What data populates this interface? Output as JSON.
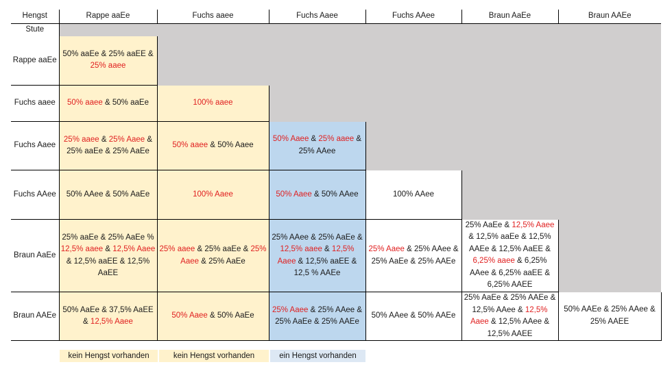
{
  "corner_label": "Hengst",
  "stute_label": "Stute",
  "columns": [
    "Rappe aaEe",
    "Fuchs aaee",
    "Fuchs Aaee",
    "Fuchs AAee",
    "Braun AaEe",
    "Braun AAEe"
  ],
  "rows": [
    {
      "label": "Rappe aaEe",
      "cells": [
        {
          "c": "y",
          "parts": [
            {
              "t": "50% aaEe & 25% aaEE & "
            },
            {
              "t": "25% aaee",
              "r": true
            }
          ]
        }
      ]
    },
    {
      "label": "Fuchs aaee",
      "cells": [
        {
          "c": "y",
          "parts": [
            {
              "t": "50% aaee",
              "r": true
            },
            {
              "t": " & 50% aaEe"
            }
          ]
        },
        {
          "c": "y",
          "parts": [
            {
              "t": "100% aaee",
              "r": true
            }
          ]
        }
      ]
    },
    {
      "label": "Fuchs Aaee",
      "cells": [
        {
          "c": "y",
          "parts": [
            {
              "t": "25% aaee",
              "r": true
            },
            {
              "t": " & "
            },
            {
              "t": "25% Aaee",
              "r": true
            },
            {
              "t": " & 25% aaEe & 25% AaEe"
            }
          ]
        },
        {
          "c": "y",
          "parts": [
            {
              "t": "50% aaee",
              "r": true
            },
            {
              "t": " & 50% Aaee"
            }
          ]
        },
        {
          "c": "b",
          "parts": [
            {
              "t": "50% Aaee",
              "r": true
            },
            {
              "t": " & "
            },
            {
              "t": "25% aaee",
              "r": true
            },
            {
              "t": " & 25% AAee"
            }
          ]
        }
      ]
    },
    {
      "label": "Fuchs AAee",
      "cells": [
        {
          "c": "y",
          "parts": [
            {
              "t": "50% AAee &  50% AaEe"
            }
          ]
        },
        {
          "c": "y",
          "parts": [
            {
              "t": "100% Aaee",
              "r": true
            }
          ]
        },
        {
          "c": "b",
          "parts": [
            {
              "t": "50% Aaee",
              "r": true
            },
            {
              "t": " & 50% AAee"
            }
          ]
        },
        {
          "c": "w",
          "parts": [
            {
              "t": "100% AAee"
            }
          ]
        }
      ]
    },
    {
      "label": "Braun AaEe",
      "cells": [
        {
          "c": "y",
          "parts": [
            {
              "t": "25% aaEe & 25% AaEe % "
            },
            {
              "t": "12,5% aaee",
              "r": true
            },
            {
              "t": " & "
            },
            {
              "t": "12,5% Aaee",
              "r": true
            },
            {
              "t": " & 12,5% aaEE & 12,5% AaEE"
            }
          ]
        },
        {
          "c": "y",
          "parts": [
            {
              "t": "25% aaee",
              "r": true
            },
            {
              "t": " & 25% aaEe & "
            },
            {
              "t": "25% Aaee",
              "r": true
            },
            {
              "t": " & 25% AaEe"
            }
          ]
        },
        {
          "c": "b",
          "parts": [
            {
              "t": "25% AAee & 25% AaEe & "
            },
            {
              "t": "12,5% aaee",
              "r": true
            },
            {
              "t": " & "
            },
            {
              "t": "12,5% Aaee",
              "r": true
            },
            {
              "t": " & 12,5% aaEE & 12,5 % AAEe"
            }
          ]
        },
        {
          "c": "w",
          "parts": [
            {
              "t": "25% Aaee",
              "r": true
            },
            {
              "t": " & 25% AAee & 25% AaEe & 25% AAEe"
            }
          ]
        },
        {
          "c": "w",
          "parts": [
            {
              "t": "25% AaEe & "
            },
            {
              "t": "12,5% Aaee",
              "r": true
            },
            {
              "t": " & 12,5% aaEe & 12,5% AAEe & 12,5% AaEE & "
            },
            {
              "t": "6,25% aaee",
              "r": true
            },
            {
              "t": " & 6,25% AAee & 6,25% aaEE & 6,25% AAEE"
            }
          ]
        }
      ]
    },
    {
      "label": "Braun AAEe",
      "cells": [
        {
          "c": "y",
          "parts": [
            {
              "t": "50% AaEe & 37,5% AaEE & "
            },
            {
              "t": "12,5% Aaee",
              "r": true
            }
          ]
        },
        {
          "c": "y",
          "parts": [
            {
              "t": "50% Aaee",
              "r": true
            },
            {
              "t": " & 50% AaEe"
            }
          ]
        },
        {
          "c": "b",
          "parts": [
            {
              "t": "25% Aaee",
              "r": true
            },
            {
              "t": " & 25% AAee & 25% AaEe & 25% AAEe"
            }
          ]
        },
        {
          "c": "w",
          "parts": [
            {
              "t": "50% AAee & 50% AAEe"
            }
          ]
        },
        {
          "c": "w",
          "parts": [
            {
              "t": "25% AaEe & 25% AAEe & 12,5% AAee & "
            },
            {
              "t": "12,5% Aaee",
              "r": true
            },
            {
              "t": " & 12,5% AAee & 12,5% AAEE"
            }
          ]
        },
        {
          "c": "w",
          "parts": [
            {
              "t": "50% AAEe & 25% AAee & 25% AAEE"
            }
          ]
        }
      ]
    }
  ],
  "legend": [
    {
      "label": "kein Hengst vorhanden",
      "color": "#fff2cc"
    },
    {
      "label": "kein Hengst vorhanden",
      "color": "#fff2cc"
    },
    {
      "label": "ein Hengst vorhanden",
      "color": "#dde8f4"
    }
  ],
  "colors": {
    "yellow": "#fff2cc",
    "blue": "#bdd7ee",
    "grey": "#d0cece",
    "red_text": "#e02020"
  }
}
